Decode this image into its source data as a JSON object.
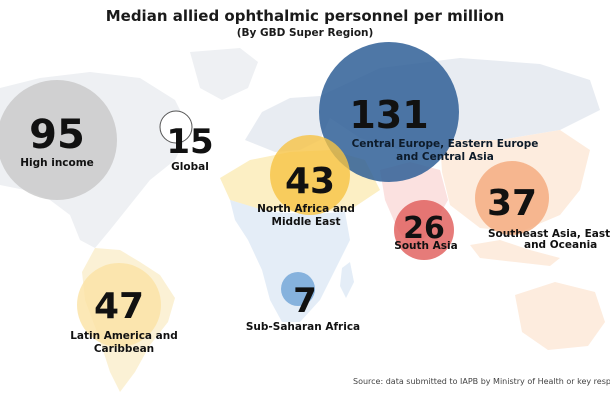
{
  "chart_data": {
    "type": "bubble-map",
    "title": "Median allied ophthalmic personnel per million",
    "subtitle": "(By GBD Super Region)",
    "source": "Source: data submitted to IAPB by Ministry of Health or key respondents",
    "colors": {
      "high_income": "#c8c8c8",
      "global": "#ffffff",
      "central_europe": "#2f5f96",
      "north_africa": "#f6c343",
      "south_asia": "#e05a58",
      "southeast_asia": "#f4a97a",
      "latin_america": "#fbe2a4",
      "sub_saharan": "#6ea3d6"
    },
    "regions": [
      {
        "id": "high-income",
        "name": "High income",
        "value": 95,
        "color": "high_income"
      },
      {
        "id": "global",
        "name": "Global",
        "value": 15,
        "color": "global"
      },
      {
        "id": "central-europe",
        "name": "Central Europe, Eastern Europe and Central Asia",
        "value": 131,
        "color": "central_europe"
      },
      {
        "id": "north-africa",
        "name": "North Africa and Middle East",
        "value": 43,
        "color": "north_africa"
      },
      {
        "id": "south-asia",
        "name": "South Asia",
        "value": 26,
        "color": "south_asia"
      },
      {
        "id": "southeast-asia",
        "name": "Southeast Asia, East Asia and Oceania",
        "value": 37,
        "color": "southeast_asia"
      },
      {
        "id": "latin-america",
        "name": "Latin America and Caribbean",
        "value": 47,
        "color": "latin_america"
      },
      {
        "id": "sub-saharan",
        "name": "Sub-Saharan Africa",
        "value": 7,
        "color": "sub_saharan"
      }
    ]
  }
}
